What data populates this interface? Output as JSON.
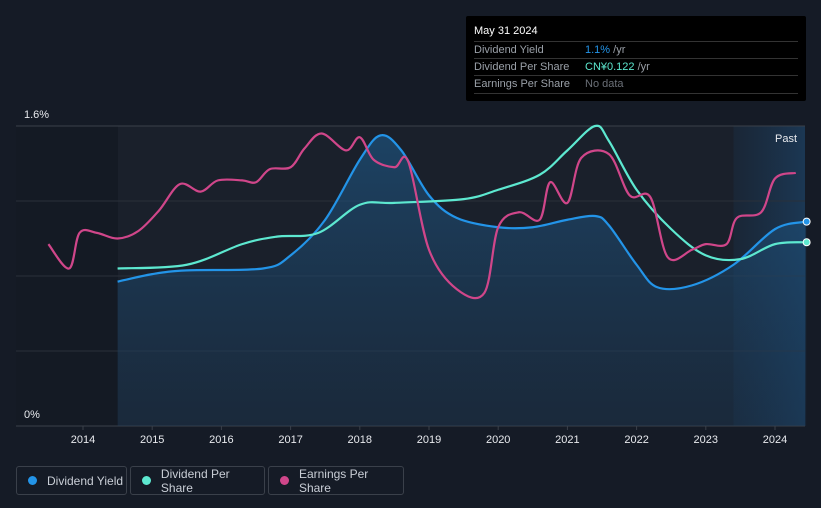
{
  "chart_data": {
    "type": "line",
    "y_tick_labels": [
      "1.6%",
      "0%"
    ],
    "ylim": [
      0,
      1.6
    ],
    "xlim": [
      2013.05,
      2024.45
    ],
    "x_tick_labels": [
      "2014",
      "2015",
      "2016",
      "2017",
      "2018",
      "2019",
      "2020",
      "2021",
      "2022",
      "2023",
      "2024"
    ],
    "past_label": "Past",
    "past_start": 2023.4,
    "series": [
      {
        "name": "Dividend Yield",
        "color": "#2394e8",
        "fill": true,
        "points": [
          [
            2014.5,
            0.77
          ],
          [
            2015,
            0.81
          ],
          [
            2015.5,
            0.83
          ],
          [
            2016.6,
            0.84
          ],
          [
            2017,
            0.91
          ],
          [
            2017.5,
            1.1
          ],
          [
            2018,
            1.42
          ],
          [
            2018.3,
            1.55
          ],
          [
            2018.6,
            1.47
          ],
          [
            2019,
            1.23
          ],
          [
            2019.4,
            1.11
          ],
          [
            2020,
            1.06
          ],
          [
            2020.5,
            1.06
          ],
          [
            2021,
            1.1
          ],
          [
            2021.4,
            1.12
          ],
          [
            2021.6,
            1.07
          ],
          [
            2022,
            0.86
          ],
          [
            2022.3,
            0.74
          ],
          [
            2022.8,
            0.75
          ],
          [
            2023.4,
            0.86
          ],
          [
            2024,
            1.05
          ],
          [
            2024.45,
            1.09
          ]
        ]
      },
      {
        "name": "Dividend Per Share",
        "color": "#5de8d0",
        "fill": false,
        "points": [
          [
            2014.5,
            0.84
          ],
          [
            2015.5,
            0.86
          ],
          [
            2016.3,
            0.97
          ],
          [
            2016.8,
            1.01
          ],
          [
            2017.4,
            1.03
          ],
          [
            2018,
            1.18
          ],
          [
            2018.5,
            1.19
          ],
          [
            2019.5,
            1.21
          ],
          [
            2020,
            1.26
          ],
          [
            2020.6,
            1.34
          ],
          [
            2021,
            1.47
          ],
          [
            2021.4,
            1.6
          ],
          [
            2021.6,
            1.52
          ],
          [
            2022,
            1.26
          ],
          [
            2022.5,
            1.05
          ],
          [
            2023,
            0.91
          ],
          [
            2023.5,
            0.89
          ],
          [
            2024,
            0.97
          ],
          [
            2024.45,
            0.98
          ]
        ]
      },
      {
        "name": "Earnings Per Share",
        "color": "#d0468a",
        "fill": false,
        "points": [
          [
            2013.5,
            0.97
          ],
          [
            2013.8,
            0.84
          ],
          [
            2013.95,
            1.03
          ],
          [
            2014.2,
            1.03
          ],
          [
            2014.5,
            1.0
          ],
          [
            2014.8,
            1.04
          ],
          [
            2015.1,
            1.15
          ],
          [
            2015.4,
            1.29
          ],
          [
            2015.7,
            1.25
          ],
          [
            2015.95,
            1.31
          ],
          [
            2016.3,
            1.31
          ],
          [
            2016.5,
            1.3
          ],
          [
            2016.7,
            1.37
          ],
          [
            2017,
            1.38
          ],
          [
            2017.2,
            1.48
          ],
          [
            2017.45,
            1.56
          ],
          [
            2017.8,
            1.47
          ],
          [
            2018,
            1.54
          ],
          [
            2018.2,
            1.42
          ],
          [
            2018.5,
            1.38
          ],
          [
            2018.7,
            1.41
          ],
          [
            2019,
            0.94
          ],
          [
            2019.4,
            0.73
          ],
          [
            2019.8,
            0.71
          ],
          [
            2020,
            1.06
          ],
          [
            2020.3,
            1.14
          ],
          [
            2020.6,
            1.1
          ],
          [
            2020.75,
            1.3
          ],
          [
            2021,
            1.19
          ],
          [
            2021.2,
            1.43
          ],
          [
            2021.6,
            1.45
          ],
          [
            2021.9,
            1.23
          ],
          [
            2022.2,
            1.22
          ],
          [
            2022.45,
            0.9
          ],
          [
            2022.8,
            0.94
          ],
          [
            2023,
            0.97
          ],
          [
            2023.3,
            0.97
          ],
          [
            2023.45,
            1.11
          ],
          [
            2023.8,
            1.14
          ],
          [
            2024,
            1.32
          ],
          [
            2024.3,
            1.35
          ]
        ]
      }
    ]
  },
  "tooltip": {
    "date": "May 31 2024",
    "rows": [
      {
        "label": "Dividend Yield",
        "value": "1.1%",
        "unit": " /yr",
        "color": "#2394e8"
      },
      {
        "label": "Dividend Per Share",
        "value": "CN¥0.122",
        "unit": " /yr",
        "color": "#5de8d0"
      },
      {
        "label": "Earnings Per Share",
        "value": "No data",
        "unit": "",
        "color": "#6b7078"
      }
    ]
  },
  "legend": [
    {
      "label": "Dividend Yield",
      "color": "#2394e8"
    },
    {
      "label": "Dividend Per Share",
      "color": "#5de8d0"
    },
    {
      "label": "Earnings Per Share",
      "color": "#d0468a"
    }
  ]
}
